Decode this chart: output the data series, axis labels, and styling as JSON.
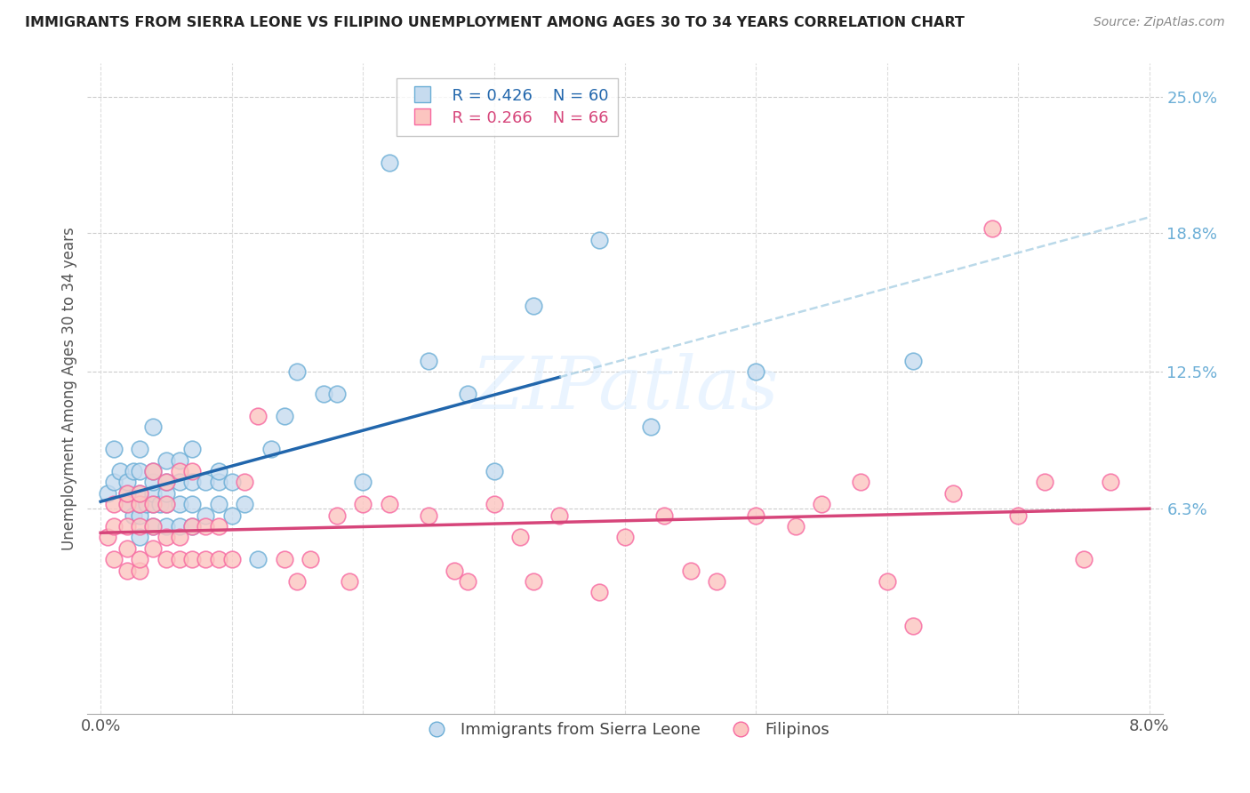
{
  "title": "IMMIGRANTS FROM SIERRA LEONE VS FILIPINO UNEMPLOYMENT AMONG AGES 30 TO 34 YEARS CORRELATION CHART",
  "source": "Source: ZipAtlas.com",
  "ylabel": "Unemployment Among Ages 30 to 34 years",
  "legend_label_1": "Immigrants from Sierra Leone",
  "legend_label_2": "Filipinos",
  "R1": 0.426,
  "N1": 60,
  "R2": 0.266,
  "N2": 66,
  "xlim": [
    -0.001,
    0.081
  ],
  "ylim": [
    -0.03,
    0.265
  ],
  "yticks": [
    0.063,
    0.125,
    0.188,
    0.25
  ],
  "ytick_labels": [
    "6.3%",
    "12.5%",
    "18.8%",
    "25.0%"
  ],
  "xticks": [
    0.0,
    0.01,
    0.02,
    0.03,
    0.04,
    0.05,
    0.06,
    0.07,
    0.08
  ],
  "xtick_labels": [
    "0.0%",
    "",
    "",
    "",
    "",
    "",
    "",
    "",
    "8.0%"
  ],
  "color_blue_fill": "#c6dbef",
  "color_pink_fill": "#fcc5c0",
  "color_blue_edge": "#6baed6",
  "color_pink_edge": "#f768a1",
  "color_blue_line": "#2166ac",
  "color_pink_line": "#d6457a",
  "color_blue_dashed": "#9ecae1",
  "color_right_axis": "#6baed6",
  "watermark_text": "ZIPatlas",
  "sierra_leone_x": [
    0.0005,
    0.001,
    0.001,
    0.0015,
    0.002,
    0.002,
    0.002,
    0.0025,
    0.0025,
    0.003,
    0.003,
    0.003,
    0.003,
    0.003,
    0.003,
    0.0035,
    0.004,
    0.004,
    0.004,
    0.004,
    0.004,
    0.004,
    0.0045,
    0.005,
    0.005,
    0.005,
    0.005,
    0.005,
    0.006,
    0.006,
    0.006,
    0.006,
    0.007,
    0.007,
    0.007,
    0.007,
    0.008,
    0.008,
    0.009,
    0.009,
    0.009,
    0.01,
    0.01,
    0.011,
    0.012,
    0.013,
    0.014,
    0.015,
    0.017,
    0.018,
    0.02,
    0.022,
    0.025,
    0.028,
    0.03,
    0.033,
    0.038,
    0.042,
    0.05,
    0.062
  ],
  "sierra_leone_y": [
    0.07,
    0.075,
    0.09,
    0.08,
    0.065,
    0.07,
    0.075,
    0.06,
    0.08,
    0.05,
    0.06,
    0.065,
    0.07,
    0.08,
    0.09,
    0.065,
    0.055,
    0.065,
    0.07,
    0.075,
    0.08,
    0.1,
    0.065,
    0.055,
    0.065,
    0.07,
    0.075,
    0.085,
    0.055,
    0.065,
    0.075,
    0.085,
    0.055,
    0.065,
    0.075,
    0.09,
    0.06,
    0.075,
    0.065,
    0.075,
    0.08,
    0.06,
    0.075,
    0.065,
    0.04,
    0.09,
    0.105,
    0.125,
    0.115,
    0.115,
    0.075,
    0.22,
    0.13,
    0.115,
    0.08,
    0.155,
    0.185,
    0.1,
    0.125,
    0.13
  ],
  "filipino_x": [
    0.0005,
    0.001,
    0.001,
    0.001,
    0.002,
    0.002,
    0.002,
    0.002,
    0.002,
    0.003,
    0.003,
    0.003,
    0.003,
    0.003,
    0.004,
    0.004,
    0.004,
    0.004,
    0.005,
    0.005,
    0.005,
    0.005,
    0.006,
    0.006,
    0.006,
    0.007,
    0.007,
    0.007,
    0.008,
    0.008,
    0.009,
    0.009,
    0.01,
    0.011,
    0.012,
    0.014,
    0.015,
    0.016,
    0.018,
    0.019,
    0.02,
    0.022,
    0.025,
    0.027,
    0.028,
    0.03,
    0.032,
    0.033,
    0.035,
    0.038,
    0.04,
    0.043,
    0.045,
    0.047,
    0.05,
    0.053,
    0.055,
    0.058,
    0.06,
    0.062,
    0.065,
    0.068,
    0.07,
    0.072,
    0.075,
    0.077
  ],
  "filipino_y": [
    0.05,
    0.04,
    0.055,
    0.065,
    0.035,
    0.045,
    0.055,
    0.065,
    0.07,
    0.035,
    0.04,
    0.055,
    0.065,
    0.07,
    0.045,
    0.055,
    0.065,
    0.08,
    0.04,
    0.05,
    0.065,
    0.075,
    0.04,
    0.05,
    0.08,
    0.04,
    0.055,
    0.08,
    0.04,
    0.055,
    0.04,
    0.055,
    0.04,
    0.075,
    0.105,
    0.04,
    0.03,
    0.04,
    0.06,
    0.03,
    0.065,
    0.065,
    0.06,
    0.035,
    0.03,
    0.065,
    0.05,
    0.03,
    0.06,
    0.025,
    0.05,
    0.06,
    0.035,
    0.03,
    0.06,
    0.055,
    0.065,
    0.075,
    0.03,
    0.01,
    0.07,
    0.19,
    0.06,
    0.075,
    0.04,
    0.075
  ]
}
